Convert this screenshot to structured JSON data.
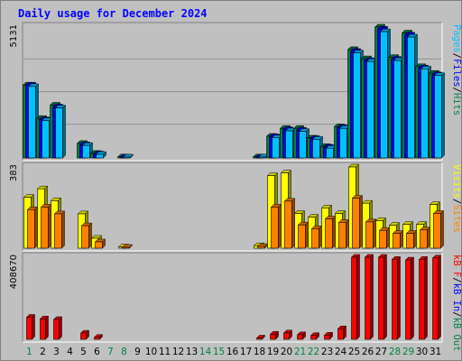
{
  "chart_data": {
    "title": "Daily usage for December 2024",
    "type": "bar",
    "categories": [
      "1",
      "2",
      "3",
      "4",
      "5",
      "6",
      "7",
      "8",
      "9",
      "10",
      "11",
      "12",
      "13",
      "14",
      "15",
      "16",
      "17",
      "18",
      "19",
      "20",
      "21",
      "22",
      "23",
      "24",
      "25",
      "26",
      "27",
      "28",
      "29",
      "30",
      "31"
    ],
    "weekend_days": [
      "1",
      "7",
      "8",
      "14",
      "15",
      "21",
      "22",
      "28",
      "29"
    ],
    "panels": [
      {
        "id": "pages-files-hits",
        "ymax_label": "5131",
        "ymax": 5131,
        "legend": [
          {
            "text": "Pages",
            "color": "#00c0ff"
          },
          {
            "text": "/",
            "color": "#000000"
          },
          {
            "text": "Files",
            "color": "#0000ff"
          },
          {
            "text": "/",
            "color": "#000000"
          },
          {
            "text": "Hits",
            "color": "#008040"
          }
        ],
        "series": [
          {
            "name": "Hits",
            "color": "#008040",
            "values": [
              2860,
              1550,
              2070,
              0,
              570,
              180,
              0,
              40,
              0,
              0,
              0,
              0,
              0,
              0,
              0,
              0,
              0,
              40,
              850,
              1160,
              1160,
              780,
              450,
              1230,
              4250,
              3890,
              5130,
              3940,
              4900,
              3580,
              3320
            ]
          },
          {
            "name": "Files",
            "color": "#0000ff",
            "values": [
              2860,
              1500,
              2000,
              0,
              520,
              160,
              0,
              30,
              0,
              0,
              0,
              0,
              0,
              0,
              0,
              0,
              0,
              30,
              830,
              1110,
              1090,
              760,
              420,
              1190,
              4180,
              3820,
              5050,
              3870,
              4820,
              3530,
              3260
            ]
          },
          {
            "name": "Pages",
            "color": "#00c0ff",
            "values": [
              2800,
              1460,
              1960,
              0,
              490,
              140,
              0,
              20,
              0,
              0,
              0,
              0,
              0,
              0,
              0,
              0,
              0,
              20,
              790,
              1060,
              1040,
              730,
              380,
              1160,
              4120,
              3780,
              4950,
              3820,
              4740,
              3490,
              3230
            ]
          }
        ]
      },
      {
        "id": "visits-sites",
        "ymax_label": "383",
        "ymax": 383,
        "legend": [
          {
            "text": "Visits",
            "color": "#ffff00"
          },
          {
            "text": "/",
            "color": "#000000"
          },
          {
            "text": "Sites",
            "color": "#ff8000"
          }
        ],
        "series": [
          {
            "name": "Visits",
            "color": "#ffff00",
            "values": [
              240,
              280,
              224,
              0,
              162,
              47,
              0,
              6,
              0,
              0,
              0,
              0,
              0,
              0,
              0,
              0,
              0,
              12,
              342,
              355,
              164,
              146,
              190,
              164,
              383,
              212,
              130,
              108,
              112,
              112,
              206
            ]
          },
          {
            "name": "Sites",
            "color": "#ff8000",
            "values": [
              182,
              194,
              162,
              0,
              106,
              30,
              0,
              3,
              0,
              0,
              0,
              0,
              0,
              0,
              0,
              0,
              0,
              8,
              194,
              222,
              110,
              92,
              138,
              122,
              236,
              124,
              84,
              70,
              70,
              86,
              164
            ]
          }
        ]
      },
      {
        "id": "kbytes",
        "ymax_label": "408670",
        "ymax": 408670,
        "legend": [
          {
            "text": "kB F",
            "color": "#ff0000"
          },
          {
            "text": "/",
            "color": "#000000"
          },
          {
            "text": "kB In",
            "color": "#0000ff"
          },
          {
            "text": "/",
            "color": "#000000"
          },
          {
            "text": "kB Out",
            "color": "#008040"
          }
        ],
        "series": [
          {
            "name": "kB F",
            "color": "#ff0000",
            "values": [
              110000,
              102000,
              99000,
              0,
              31000,
              10000,
              0,
              0,
              0,
              0,
              0,
              0,
              0,
              0,
              0,
              0,
              0,
              7000,
              26000,
              32000,
              23000,
              19000,
              21000,
              53000,
              408670,
              408670,
              408670,
              398000,
              395000,
              398000,
              405000
            ]
          }
        ]
      }
    ]
  }
}
